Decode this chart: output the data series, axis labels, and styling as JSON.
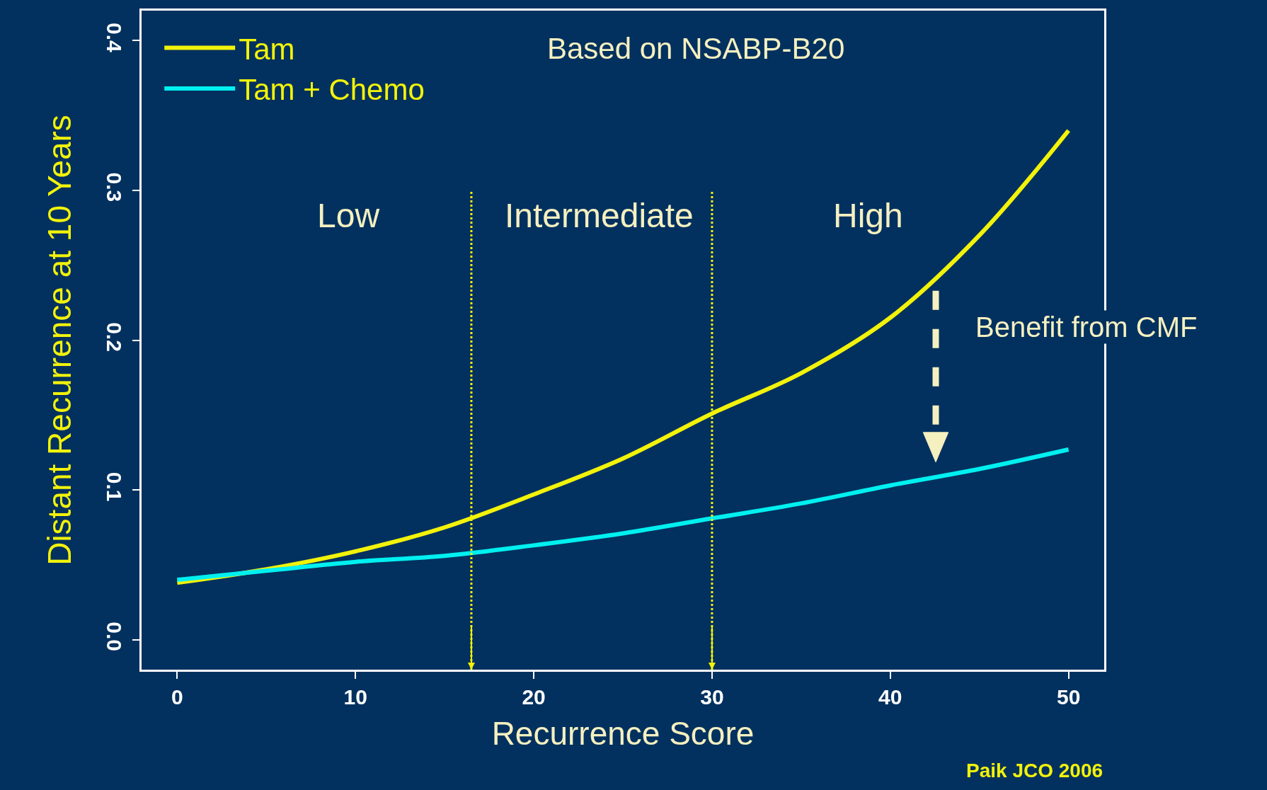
{
  "chart_data": {
    "type": "line",
    "xlabel": "Recurrence Score",
    "ylabel": "Distant Recurrence at 10 Years",
    "x": [
      0,
      5,
      10,
      15,
      20,
      25,
      30,
      35,
      40,
      45,
      50
    ],
    "series": [
      {
        "name": "Tam",
        "color": "#f2f20a",
        "values": [
          0.038,
          0.047,
          0.059,
          0.075,
          0.097,
          0.121,
          0.151,
          0.178,
          0.215,
          0.27,
          0.34
        ]
      },
      {
        "name": "Tam + Chemo",
        "color": "#00f0f0",
        "values": [
          0.04,
          0.046,
          0.052,
          0.056,
          0.063,
          0.071,
          0.081,
          0.091,
          0.103,
          0.114,
          0.127
        ]
      }
    ],
    "xlim": [
      -2,
      52
    ],
    "ylim": [
      -0.02,
      0.42
    ],
    "xticks": [
      0,
      10,
      20,
      30,
      40,
      50
    ],
    "yticks": [
      {
        "value": 0,
        "label": "0.0"
      },
      0.1,
      0.2,
      0.3,
      0.4
    ],
    "ref_lines": [
      {
        "axis": "x",
        "value": 16.5,
        "color": "#f2f20a",
        "line_style": "dotted"
      },
      {
        "axis": "x",
        "value": 30,
        "color": "#f2f20a",
        "line_style": "dotted"
      }
    ],
    "annotations": [
      "Based on NSABP-B20",
      "Low",
      "Intermediate",
      "High",
      "Benefit from CMF",
      "Paik JCO 2006"
    ],
    "legend": "top left",
    "grid": false,
    "marker": "none",
    "line_style": "solid"
  }
}
